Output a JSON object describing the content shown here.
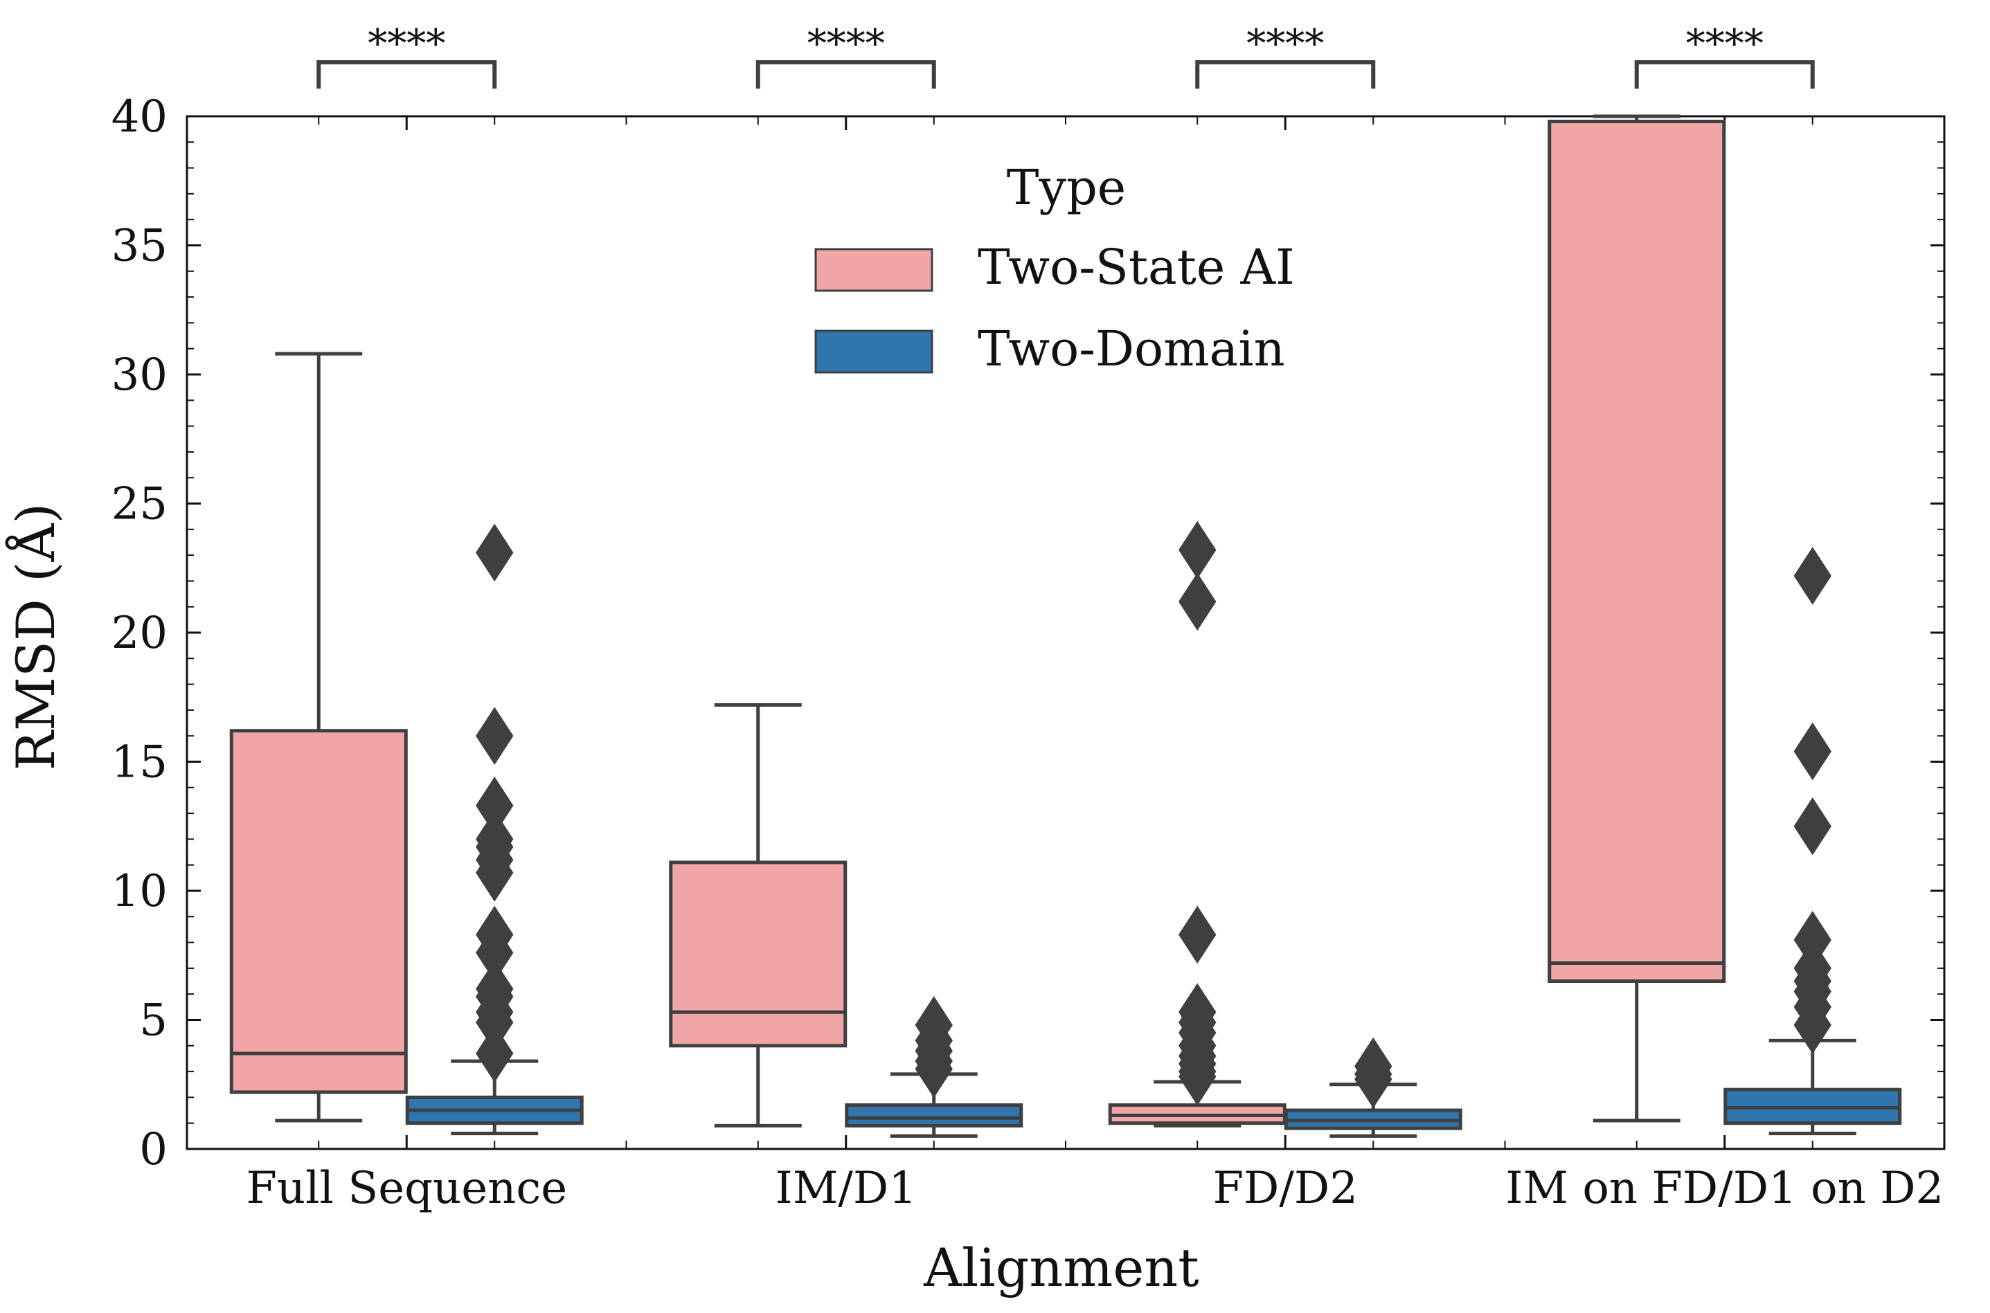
{
  "chart_data": {
    "type": "box",
    "xlabel": "Alignment",
    "ylabel": "RMSD (Å)",
    "ylim": [
      0,
      40
    ],
    "yticks": [
      0,
      5,
      10,
      15,
      20,
      25,
      30,
      35,
      40
    ],
    "categories": [
      "Full Sequence",
      "IM/D1",
      "FD/D2",
      "IM on FD/D1 on D2"
    ],
    "legend": {
      "title": "Type",
      "position": "top-center"
    },
    "significance": [
      "****",
      "****",
      "****",
      "****"
    ],
    "series": [
      {
        "name": "Two-State AI",
        "color": "#f0a6a6",
        "boxes": [
          {
            "whisker_low": 1.1,
            "q1": 2.2,
            "median": 3.7,
            "q3": 16.2,
            "whisker_high": 30.8,
            "outliers": []
          },
          {
            "whisker_low": 0.9,
            "q1": 4.0,
            "median": 5.3,
            "q3": 11.1,
            "whisker_high": 17.2,
            "outliers": []
          },
          {
            "whisker_low": 0.9,
            "q1": 1.0,
            "median": 1.3,
            "q3": 1.7,
            "whisker_high": 2.6,
            "outliers": [
              2.8,
              3.0,
              3.3,
              3.6,
              4.0,
              4.5,
              4.9,
              5.3,
              8.3,
              21.2,
              23.2
            ]
          },
          {
            "whisker_low": 1.1,
            "q1": 6.5,
            "median": 7.2,
            "q3": 39.8,
            "whisker_high": 40.0,
            "outliers": []
          }
        ]
      },
      {
        "name": "Two-Domain",
        "color": "#2f75ae",
        "boxes": [
          {
            "whisker_low": 0.6,
            "q1": 1.0,
            "median": 1.5,
            "q3": 2.0,
            "whisker_high": 3.4,
            "outliers": [
              3.7,
              4.9,
              5.3,
              5.9,
              6.2,
              7.6,
              8.3,
              10.7,
              11.2,
              11.7,
              12.0,
              13.3,
              16.0,
              23.1
            ]
          },
          {
            "whisker_low": 0.5,
            "q1": 0.9,
            "median": 1.2,
            "q3": 1.7,
            "whisker_high": 2.9,
            "outliers": [
              3.1,
              3.4,
              3.8,
              4.2,
              4.8
            ]
          },
          {
            "whisker_low": 0.5,
            "q1": 0.8,
            "median": 1.1,
            "q3": 1.5,
            "whisker_high": 2.5,
            "outliers": [
              2.7,
              2.9,
              3.2
            ]
          },
          {
            "whisker_low": 0.6,
            "q1": 1.0,
            "median": 1.6,
            "q3": 2.3,
            "whisker_high": 4.2,
            "outliers": [
              4.8,
              5.5,
              6.1,
              6.5,
              7.0,
              8.1,
              12.5,
              15.4,
              22.2
            ]
          }
        ]
      }
    ]
  }
}
